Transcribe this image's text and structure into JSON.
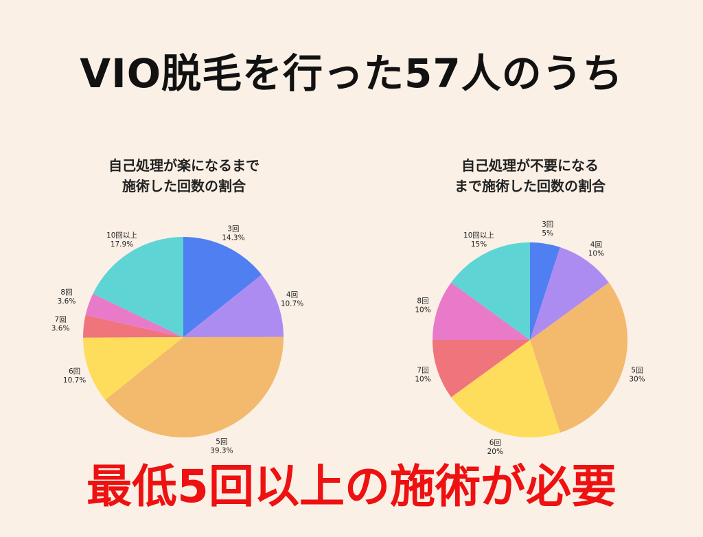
{
  "headline": "VIO脱毛を行った57人のうち",
  "conclusion": "最低5回以上の施術が必要",
  "colors": {
    "3回": "#4f7ff0",
    "4回": "#ad8cf2",
    "5回": "#f3b96d",
    "6回": "#ffdd5c",
    "7回": "#ef747c",
    "8回": "#e87ac9",
    "10回以上": "#5fd4d4"
  },
  "chart_data": [
    {
      "type": "pie",
      "title": "自己処理が楽になるまで\n施術した回数の割合",
      "slices": [
        {
          "label": "3回",
          "value": 14.3,
          "text": "14.3%"
        },
        {
          "label": "4回",
          "value": 10.7,
          "text": "10.7%"
        },
        {
          "label": "5回",
          "value": 39.3,
          "text": "39.3%"
        },
        {
          "label": "6回",
          "value": 10.7,
          "text": "10.7%"
        },
        {
          "label": "7回",
          "value": 3.6,
          "text": "3.6%"
        },
        {
          "label": "8回",
          "value": 3.6,
          "text": "3.6%"
        },
        {
          "label": "10回以上",
          "value": 17.9,
          "text": "17.9%"
        }
      ]
    },
    {
      "type": "pie",
      "title": "自己処理が不要になる\nまで施術した回数の割合",
      "slices": [
        {
          "label": "3回",
          "value": 5,
          "text": "5%"
        },
        {
          "label": "4回",
          "value": 10,
          "text": "10%"
        },
        {
          "label": "5回",
          "value": 30,
          "text": "30%"
        },
        {
          "label": "6回",
          "value": 20,
          "text": "20%"
        },
        {
          "label": "7回",
          "value": 10,
          "text": "10%"
        },
        {
          "label": "8回",
          "value": 10,
          "text": "10%"
        },
        {
          "label": "10回以上",
          "value": 15,
          "text": "15%"
        }
      ]
    }
  ]
}
